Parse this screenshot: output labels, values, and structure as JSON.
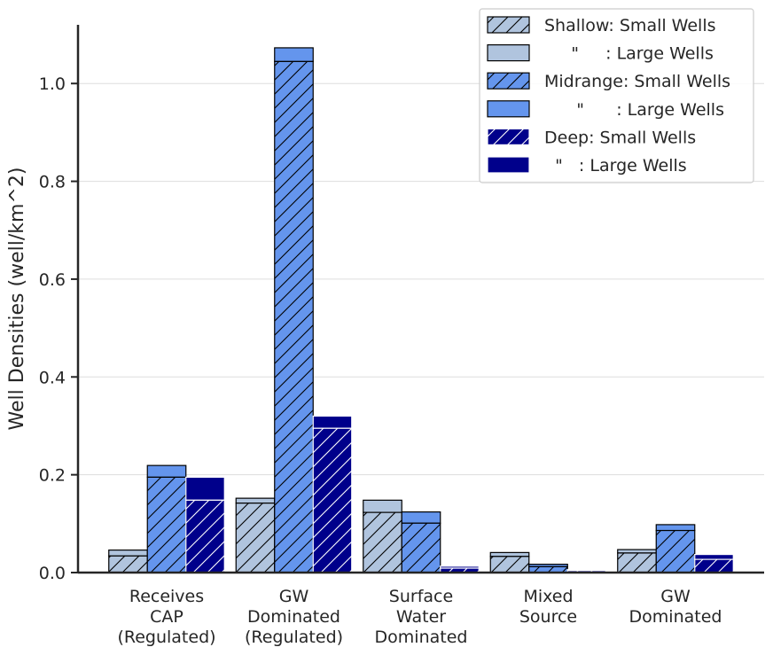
{
  "chart_data": {
    "type": "bar",
    "stacked_within_group": true,
    "title": "",
    "xlabel": "",
    "ylabel": "Well Densities (well/km^2)",
    "ylim": [
      0,
      1.12
    ],
    "yticks": [
      0.0,
      0.2,
      0.4,
      0.6,
      0.8,
      1.0
    ],
    "ytick_labels": [
      "0.0",
      "0.2",
      "0.4",
      "0.6",
      "0.8",
      "1.0"
    ],
    "grid": "horizontal",
    "legend_position": "top-right",
    "categories": [
      [
        "Receives",
        "CAP",
        "(Regulated)"
      ],
      [
        "GW",
        "Dominated",
        "(Regulated)"
      ],
      [
        "Surface",
        "Water",
        "Dominated"
      ],
      [
        "Mixed",
        "Source"
      ],
      [
        "GW",
        "Dominated"
      ]
    ],
    "groups": [
      {
        "depth": "Shallow",
        "color": "#b0c4de",
        "hatch_color": "#000000",
        "edge_color": "#000000",
        "small_wells": [
          0.034,
          0.142,
          0.123,
          0.033,
          0.04
        ],
        "large_wells": [
          0.012,
          0.01,
          0.025,
          0.008,
          0.007
        ]
      },
      {
        "depth": "Midrange",
        "color": "#6495ed",
        "hatch_color": "#000000",
        "edge_color": "#000000",
        "small_wells": [
          0.195,
          1.045,
          0.101,
          0.012,
          0.086
        ],
        "large_wells": [
          0.024,
          0.028,
          0.023,
          0.005,
          0.012
        ]
      },
      {
        "depth": "Deep",
        "color": "#00008b",
        "hatch_color": "#ffffff",
        "edge_color": "#ffffff",
        "small_wells": [
          0.148,
          0.295,
          0.009,
          0.004,
          0.027
        ],
        "large_wells": [
          0.047,
          0.025,
          0.004,
          0.002,
          0.01
        ]
      }
    ],
    "legend": [
      {
        "label": "Shallow: Small Wells",
        "color": "#b0c4de",
        "hatched": true,
        "edge": "#000000",
        "hatch": "#000000"
      },
      {
        "label": "     \"     : Large Wells",
        "color": "#b0c4de",
        "hatched": false,
        "edge": "#000000",
        "hatch": "#000000"
      },
      {
        "label": "Midrange: Small Wells",
        "color": "#6495ed",
        "hatched": true,
        "edge": "#000000",
        "hatch": "#000000"
      },
      {
        "label": "      \"      : Large Wells",
        "color": "#6495ed",
        "hatched": false,
        "edge": "#000000",
        "hatch": "#000000"
      },
      {
        "label": "Deep: Small Wells",
        "color": "#00008b",
        "hatched": true,
        "edge": "#ffffff",
        "hatch": "#ffffff"
      },
      {
        "label": "  \"   : Large Wells",
        "color": "#00008b",
        "hatched": false,
        "edge": "#ffffff",
        "hatch": "#ffffff"
      }
    ]
  }
}
